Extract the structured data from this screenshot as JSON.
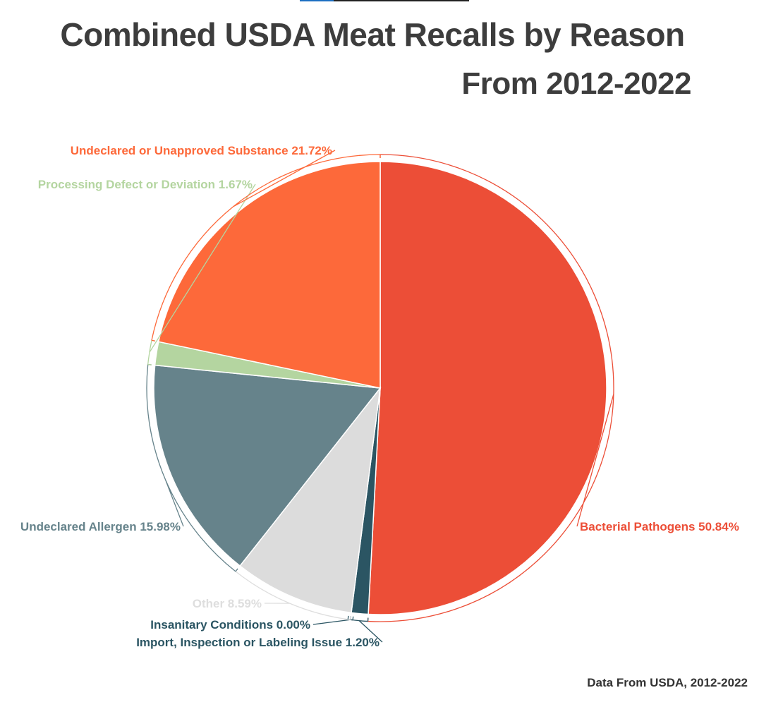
{
  "chart_data": {
    "type": "pie",
    "title": "Combined USDA Meat Recalls by Reason",
    "subtitle": "From 2012-2022",
    "source": "Data From USDA, 2012-2022",
    "slices": [
      {
        "name": "Bacterial Pathogens",
        "value": 50.84,
        "label": "Bacterial Pathogens 50.84%",
        "color": "#ec4e37"
      },
      {
        "name": "Import, Inspection or Labeling Issue",
        "value": 1.2,
        "label": "Import, Inspection or Labeling Issue 1.20%",
        "color": "#2b5563"
      },
      {
        "name": "Insanitary Conditions",
        "value": 0.0,
        "label": "Insanitary Conditions 0.00%",
        "color": "#2b5563"
      },
      {
        "name": "Other",
        "value": 8.59,
        "label": "Other 8.59%",
        "color": "#dcdcdc"
      },
      {
        "name": "Undeclared Allergen",
        "value": 15.98,
        "label": "Undeclared Allergen 15.98%",
        "color": "#66838b"
      },
      {
        "name": "Processing Defect or Deviation",
        "value": 1.67,
        "label": "Processing Defect or Deviation 1.67%",
        "color": "#b4d5a0"
      },
      {
        "name": "Undeclared or Unapproved Substance",
        "value": 21.72,
        "label": "Undeclared or Unapproved Substance 21.72%",
        "color": "#fd693a"
      }
    ]
  }
}
